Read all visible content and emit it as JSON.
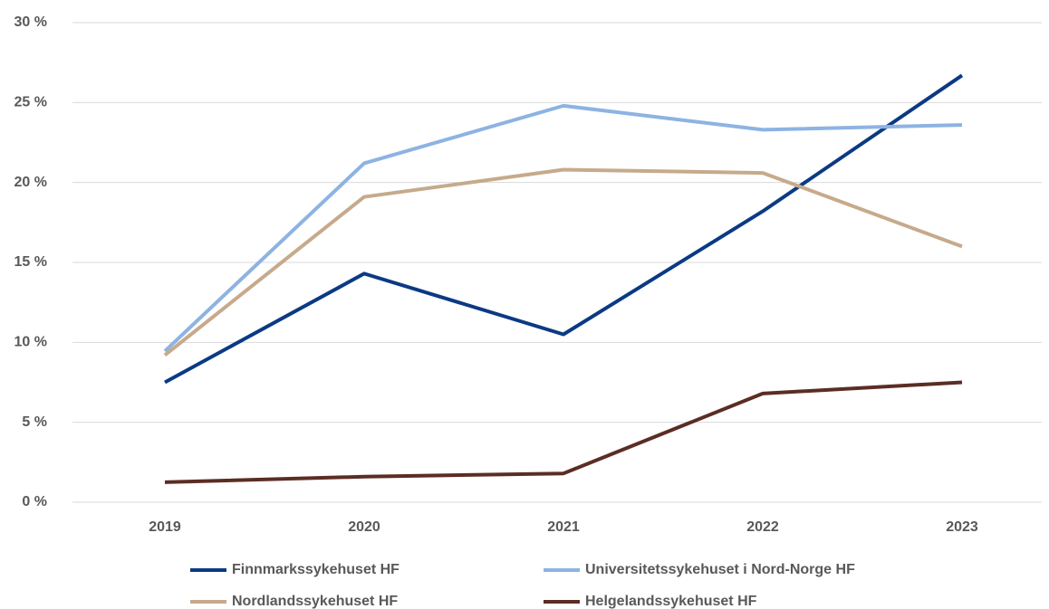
{
  "chart_data": {
    "type": "line",
    "categories": [
      "2019",
      "2020",
      "2021",
      "2022",
      "2023"
    ],
    "series": [
      {
        "name": "Finnmarkssykehuset HF",
        "color": "#0b3a84",
        "values": [
          7.5,
          14.3,
          10.5,
          18.2,
          26.7
        ]
      },
      {
        "name": "Universitetssykehuset i Nord-Norge HF",
        "color": "#8db3e2",
        "values": [
          9.45,
          21.2,
          24.8,
          23.3,
          23.6
        ]
      },
      {
        "name": "Nordlandssykehuset HF",
        "color": "#c6aa8b",
        "values": [
          9.2,
          19.1,
          20.8,
          20.6,
          16.0
        ]
      },
      {
        "name": "Helgelandssykehuset HF",
        "color": "#5b2d24",
        "values": [
          1.25,
          1.6,
          1.8,
          6.8,
          7.5
        ]
      }
    ],
    "ylim": [
      0,
      30
    ],
    "yticks": [
      {
        "value": 0,
        "label": "0 %"
      },
      {
        "value": 5,
        "label": "5 %"
      },
      {
        "value": 10,
        "label": "10 %"
      },
      {
        "value": 15,
        "label": "15 %"
      },
      {
        "value": 20,
        "label": "20 %"
      },
      {
        "value": 25,
        "label": "25 %"
      },
      {
        "value": 30,
        "label": "30 %"
      }
    ],
    "grid": true,
    "legend": "bottom"
  }
}
